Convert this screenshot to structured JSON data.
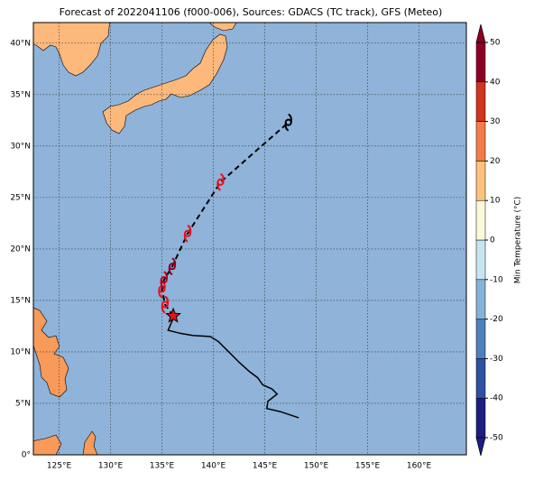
{
  "title": "Forecast of 2022041106 (f000-006), Sources: GDACS (TC track), GFS (Meteo)",
  "map": {
    "xlim": [
      122.5,
      164.6
    ],
    "ylim": [
      0,
      42
    ],
    "xticks": [
      {
        "value": 125,
        "label": "125°E"
      },
      {
        "value": 130,
        "label": "130°E"
      },
      {
        "value": 135,
        "label": "135°E"
      },
      {
        "value": 140,
        "label": "140°E"
      },
      {
        "value": 145,
        "label": "145°E"
      },
      {
        "value": 150,
        "label": "150°E"
      },
      {
        "value": 155,
        "label": "155°E"
      },
      {
        "value": 160,
        "label": "160°E"
      }
    ],
    "yticks": [
      {
        "value": 0,
        "label": "0°"
      },
      {
        "value": 5,
        "label": "5°N"
      },
      {
        "value": 10,
        "label": "10°N"
      },
      {
        "value": 15,
        "label": "15°N"
      },
      {
        "value": 20,
        "label": "20°N"
      },
      {
        "value": 25,
        "label": "25°N"
      },
      {
        "value": 30,
        "label": "30°N"
      },
      {
        "value": 35,
        "label": "35°N"
      },
      {
        "value": 40,
        "label": "40°N"
      }
    ],
    "ocean_color": "#8fb3d9",
    "land_color": "#fdb87c"
  },
  "colorbar": {
    "label": "Min Temperature (°C)",
    "lim": [
      -50,
      50
    ],
    "ticks": [
      -50,
      -40,
      -30,
      -20,
      -10,
      0,
      10,
      20,
      30,
      40,
      50
    ],
    "colors": [
      "#1c1f80",
      "#2e52a0",
      "#4d81bb",
      "#84b3d7",
      "#c8e4ef",
      "#fbf8dc",
      "#fdc27e",
      "#f27d47",
      "#d2341f",
      "#8c0024"
    ]
  },
  "track": {
    "observed": {
      "lon": [
        148.3,
        146.5,
        145.2,
        145.3,
        146.2,
        145.7,
        144.8,
        144.3,
        143.5,
        142.5,
        141.5,
        140.5,
        139.7,
        138.0,
        136.8,
        135.6,
        136.2
      ],
      "lat": [
        3.6,
        4.2,
        4.5,
        5.2,
        5.9,
        6.4,
        6.8,
        7.5,
        8.1,
        9.0,
        10.0,
        11.0,
        11.5,
        11.6,
        11.8,
        12.1,
        13.5
      ]
    },
    "forecast": {
      "lon": [
        136.1,
        135.3,
        135.0,
        135.2,
        136.0,
        137.5,
        140.7,
        147.3
      ],
      "lat": [
        13.5,
        14.6,
        16.1,
        17.0,
        18.3,
        21.5,
        26.5,
        32.3
      ],
      "colors": [
        "#000000",
        "#e8101a",
        "#e8101a",
        "#b0001a",
        "#8c0024",
        "#e8101a",
        "#e8101a",
        "#000000"
      ]
    },
    "current": {
      "lon": 136.1,
      "lat": 13.5,
      "color": "#e8101a"
    }
  }
}
